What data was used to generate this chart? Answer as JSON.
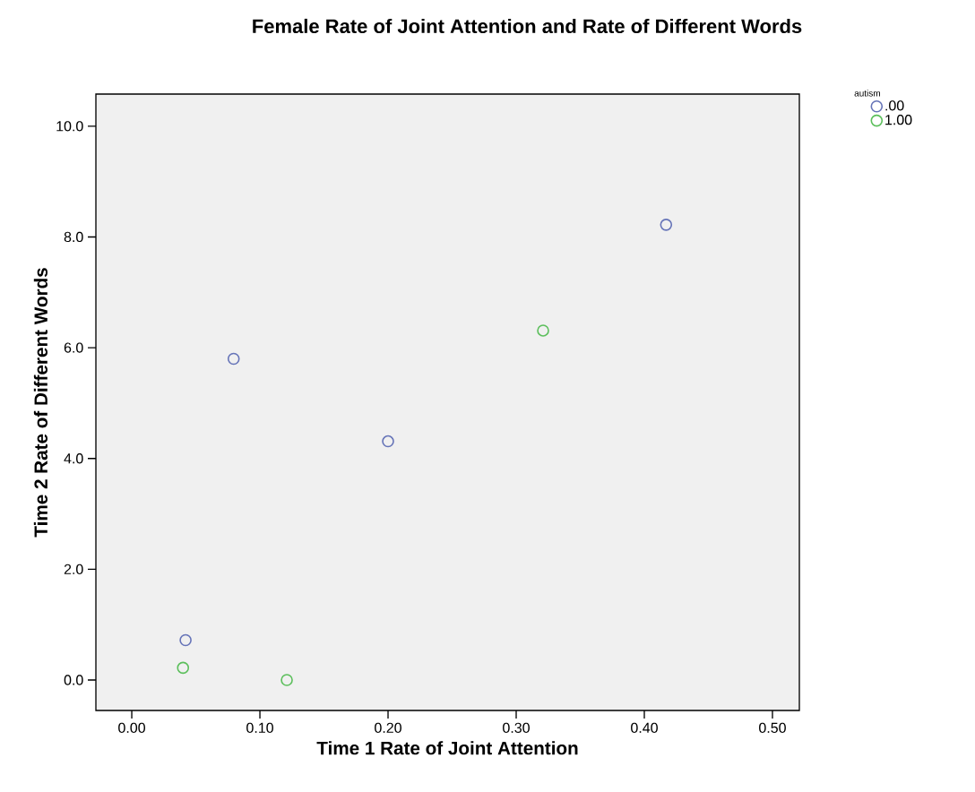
{
  "chart_data": {
    "type": "scatter",
    "title": "Female Rate of Joint Attention and Rate of Different Words",
    "xlabel": "Time 1 Rate of Joint Attention",
    "ylabel": "Time 2 Rate of Different Words",
    "legend_title": "autism",
    "legend": "top right",
    "marker": "circle",
    "xlim": [
      -0.028,
      0.521
    ],
    "ylim": [
      -0.55,
      10.58
    ],
    "xticks": [
      {
        "value": 0,
        "label": "0.00"
      },
      {
        "value": 0.1,
        "label": "0.10"
      },
      {
        "value": 0.2,
        "label": "0.20"
      },
      {
        "value": 0.3,
        "label": "0.30"
      },
      {
        "value": 0.4,
        "label": "0.40"
      },
      {
        "value": 0.5,
        "label": "0.50"
      }
    ],
    "yticks": [
      {
        "value": 0,
        "label": "0.0"
      },
      {
        "value": 2,
        "label": "2.0"
      },
      {
        "value": 4,
        "label": "4.0"
      },
      {
        "value": 6,
        "label": "6.0"
      },
      {
        "value": 8,
        "label": "8.0"
      },
      {
        "value": 10,
        "label": "10.0"
      }
    ],
    "series": [
      {
        "name": ".00",
        "color": "#6674b8",
        "x": [
          0.042,
          0.0795,
          0.2,
          0.417
        ],
        "values": [
          0.72,
          5.8,
          4.31,
          8.22
        ]
      },
      {
        "name": "1.00",
        "color": "#5cbf5c",
        "x": [
          0.04,
          0.121,
          0.321
        ],
        "values": [
          0.22,
          0.0,
          6.31
        ]
      }
    ]
  }
}
